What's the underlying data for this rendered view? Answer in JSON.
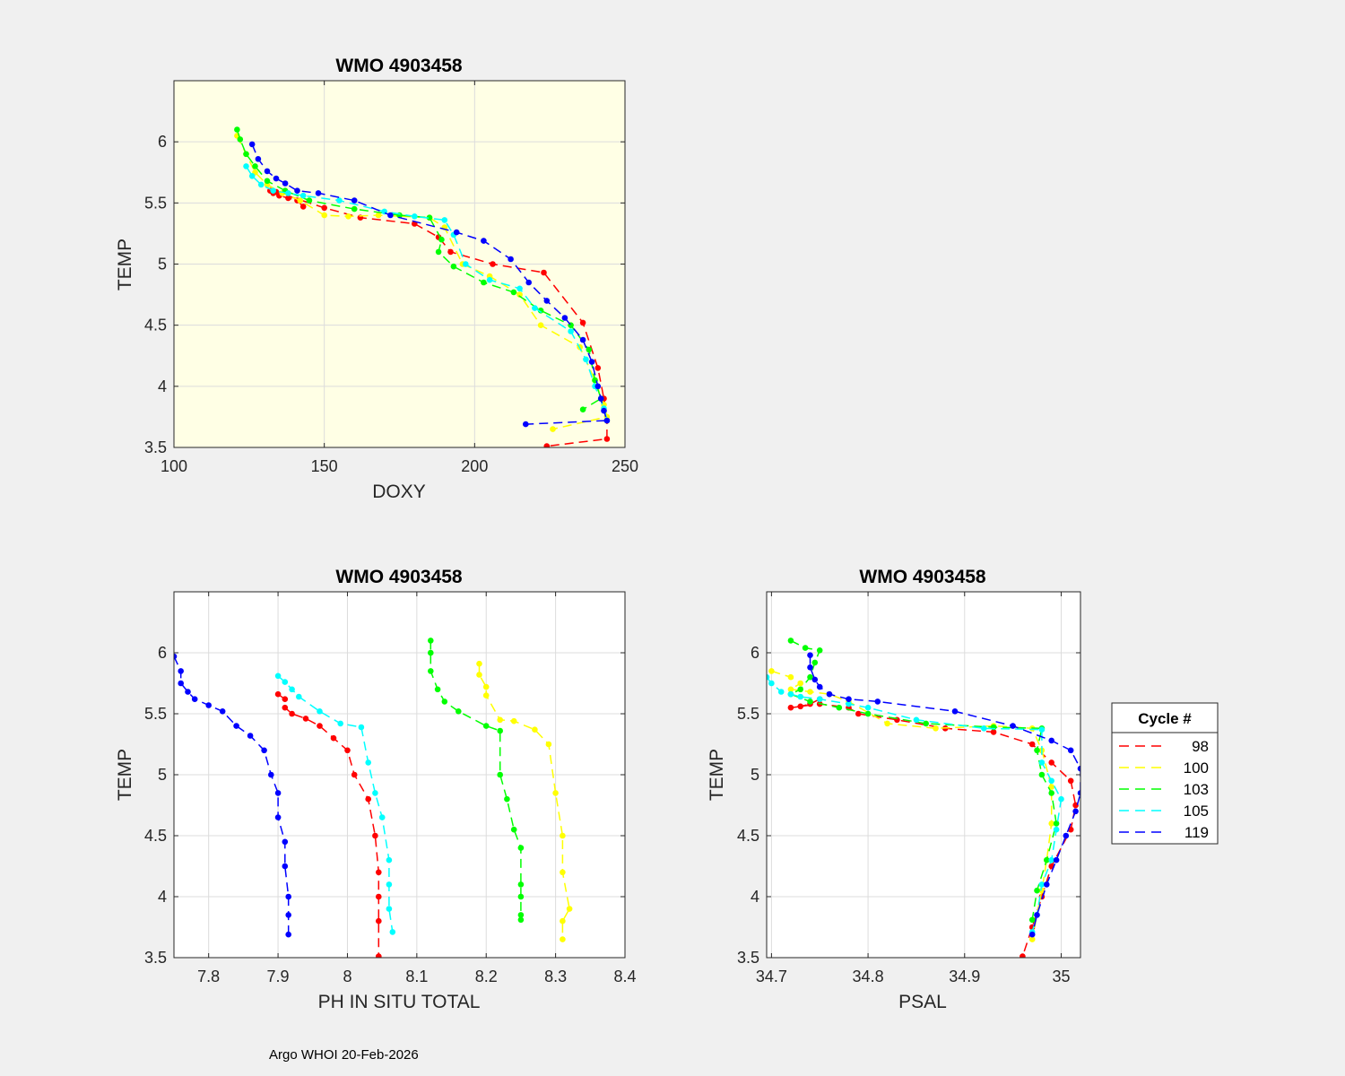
{
  "footer": "Argo WHOI 20-Feb-2026",
  "legend": {
    "title": "Cycle #",
    "entries": [
      "98",
      "100",
      "103",
      "105",
      "119"
    ]
  },
  "series_colors": {
    "98": "#ff0000",
    "100": "#ffff00",
    "103": "#00ff00",
    "105": "#00ffff",
    "119": "#0000ff"
  },
  "chart_data": [
    {
      "id": "doxy",
      "type": "line",
      "title": "WMO 4903458",
      "xlabel": "DOXY",
      "ylabel": "TEMP",
      "xlim": [
        100,
        250
      ],
      "ylim": [
        3.5,
        6.5
      ],
      "xticks": [
        100,
        150,
        200,
        250
      ],
      "yticks": [
        3.5,
        4,
        4.5,
        5,
        5.5,
        6
      ],
      "xtick_labels": [
        "100",
        "150",
        "200",
        "250"
      ],
      "ytick_labels": [
        "3.5",
        "4",
        "4.5",
        "5",
        "5.5",
        "6"
      ],
      "background": "#ffffe5",
      "grid": true,
      "series": [
        {
          "name": "98",
          "x": [
            143,
            141,
            138,
            135,
            133,
            132,
            134,
            150,
            162,
            180,
            188,
            192,
            206,
            223,
            236,
            241,
            243,
            244,
            244,
            224
          ],
          "y": [
            5.47,
            5.52,
            5.54,
            5.56,
            5.58,
            5.6,
            5.59,
            5.46,
            5.38,
            5.33,
            5.22,
            5.1,
            5.0,
            4.93,
            4.52,
            4.15,
            3.9,
            3.72,
            3.57,
            3.51
          ]
        },
        {
          "name": "100",
          "x": [
            121,
            124,
            127,
            131,
            136,
            142,
            150,
            158,
            168,
            185,
            190,
            196,
            205,
            215,
            222,
            235,
            240,
            243,
            244,
            226
          ],
          "y": [
            6.05,
            5.9,
            5.75,
            5.65,
            5.58,
            5.52,
            5.4,
            5.39,
            5.4,
            5.38,
            5.3,
            5.0,
            4.9,
            4.75,
            4.5,
            4.32,
            4.05,
            3.85,
            3.75,
            3.65
          ]
        },
        {
          "name": "103",
          "x": [
            121,
            122,
            124,
            127,
            131,
            137,
            145,
            160,
            175,
            185,
            189,
            188,
            193,
            203,
            213,
            222,
            232,
            238,
            240,
            242,
            236
          ],
          "y": [
            6.1,
            6.02,
            5.9,
            5.8,
            5.68,
            5.6,
            5.52,
            5.45,
            5.4,
            5.38,
            5.2,
            5.1,
            4.98,
            4.85,
            4.77,
            4.62,
            4.5,
            4.3,
            4.05,
            3.9,
            3.81
          ]
        },
        {
          "name": "105",
          "x": [
            124,
            126,
            129,
            133,
            138,
            143,
            155,
            170,
            180,
            190,
            193,
            197,
            205,
            215,
            220,
            232,
            237,
            240,
            243,
            244
          ],
          "y": [
            5.8,
            5.72,
            5.65,
            5.6,
            5.58,
            5.56,
            5.52,
            5.43,
            5.39,
            5.36,
            5.24,
            5.0,
            4.87,
            4.8,
            4.64,
            4.45,
            4.22,
            4.0,
            3.82,
            3.72
          ]
        },
        {
          "name": "119",
          "x": [
            126,
            128,
            131,
            134,
            137,
            141,
            148,
            160,
            172,
            194,
            203,
            212,
            218,
            224,
            230,
            236,
            239,
            241,
            242,
            243,
            244,
            217
          ],
          "y": [
            5.98,
            5.86,
            5.76,
            5.7,
            5.66,
            5.6,
            5.58,
            5.52,
            5.4,
            5.26,
            5.19,
            5.04,
            4.85,
            4.7,
            4.56,
            4.38,
            4.2,
            4.0,
            3.9,
            3.8,
            3.72,
            3.69
          ]
        }
      ]
    },
    {
      "id": "ph",
      "type": "line",
      "title": "WMO 4903458",
      "xlabel": "PH IN SITU TOTAL",
      "ylabel": "TEMP",
      "xlim": [
        7.75,
        8.4
      ],
      "ylim": [
        3.5,
        6.5
      ],
      "xticks": [
        7.8,
        7.9,
        8,
        8.1,
        8.2,
        8.3,
        8.4
      ],
      "yticks": [
        3.5,
        4,
        4.5,
        5,
        5.5,
        6
      ],
      "xtick_labels": [
        "7.8",
        "7.9",
        "8",
        "8.1",
        "8.2",
        "8.3",
        "8.4"
      ],
      "ytick_labels": [
        "3.5",
        "4",
        "4.5",
        "5",
        "5.5",
        "6"
      ],
      "background": "#ffffff",
      "grid": true,
      "series": [
        {
          "name": "98",
          "x": [
            7.9,
            7.91,
            7.91,
            7.92,
            7.94,
            7.96,
            7.98,
            8.0,
            8.01,
            8.03,
            8.04,
            8.045,
            8.045,
            8.045,
            8.045
          ],
          "y": [
            5.66,
            5.62,
            5.55,
            5.5,
            5.46,
            5.4,
            5.3,
            5.2,
            5.0,
            4.8,
            4.5,
            4.2,
            4.0,
            3.8,
            3.51
          ]
        },
        {
          "name": "100",
          "x": [
            8.19,
            8.19,
            8.2,
            8.2,
            8.22,
            8.24,
            8.27,
            8.29,
            8.3,
            8.31,
            8.31,
            8.32,
            8.31,
            8.31
          ],
          "y": [
            5.91,
            5.82,
            5.72,
            5.65,
            5.45,
            5.44,
            5.37,
            5.25,
            4.85,
            4.5,
            4.2,
            3.9,
            3.8,
            3.65
          ]
        },
        {
          "name": "103",
          "x": [
            8.12,
            8.12,
            8.12,
            8.13,
            8.14,
            8.16,
            8.2,
            8.22,
            8.22,
            8.23,
            8.24,
            8.25,
            8.25,
            8.25,
            8.25,
            8.25
          ],
          "y": [
            6.1,
            6.0,
            5.85,
            5.7,
            5.6,
            5.52,
            5.4,
            5.36,
            5.0,
            4.8,
            4.55,
            4.4,
            4.1,
            4.0,
            3.85,
            3.81
          ]
        },
        {
          "name": "105",
          "x": [
            7.9,
            7.91,
            7.92,
            7.93,
            7.96,
            7.99,
            8.02,
            8.03,
            8.04,
            8.05,
            8.06,
            8.06,
            8.06,
            8.065
          ],
          "y": [
            5.81,
            5.76,
            5.7,
            5.64,
            5.52,
            5.42,
            5.39,
            5.1,
            4.85,
            4.65,
            4.3,
            4.1,
            3.9,
            3.71
          ]
        },
        {
          "name": "119",
          "x": [
            7.75,
            7.76,
            7.76,
            7.77,
            7.78,
            7.8,
            7.82,
            7.84,
            7.86,
            7.88,
            7.89,
            7.9,
            7.9,
            7.91,
            7.91,
            7.915,
            7.915,
            7.915
          ],
          "y": [
            5.97,
            5.85,
            5.75,
            5.68,
            5.62,
            5.57,
            5.52,
            5.4,
            5.32,
            5.2,
            5.0,
            4.85,
            4.65,
            4.45,
            4.25,
            4.0,
            3.85,
            3.69
          ]
        }
      ]
    },
    {
      "id": "psal",
      "type": "line",
      "title": "WMO 4903458",
      "xlabel": "PSAL",
      "ylabel": "TEMP",
      "xlim": [
        34.695,
        35.02
      ],
      "ylim": [
        3.5,
        6.5
      ],
      "xticks": [
        34.7,
        34.8,
        34.9,
        35
      ],
      "yticks": [
        3.5,
        4,
        4.5,
        5,
        5.5,
        6
      ],
      "xtick_labels": [
        "34.7",
        "34.8",
        "34.9",
        "35"
      ],
      "ytick_labels": [
        "3.5",
        "4",
        "4.5",
        "5",
        "5.5",
        "6"
      ],
      "background": "#ffffff",
      "grid": true,
      "series": [
        {
          "name": "98",
          "x": [
            34.75,
            34.74,
            34.73,
            34.72,
            34.75,
            34.78,
            34.79,
            34.83,
            34.88,
            34.93,
            34.97,
            34.99,
            35.01,
            35.015,
            35.01,
            34.99,
            34.98,
            34.97,
            34.96
          ],
          "y": [
            5.62,
            5.58,
            5.56,
            5.55,
            5.58,
            5.55,
            5.5,
            5.45,
            5.38,
            5.35,
            5.25,
            5.1,
            4.95,
            4.75,
            4.55,
            4.25,
            4.0,
            3.75,
            3.51
          ]
        },
        {
          "name": "100",
          "x": [
            34.7,
            34.72,
            34.73,
            34.72,
            34.74,
            34.76,
            34.78,
            34.82,
            34.87,
            34.93,
            34.97,
            34.98,
            34.99,
            34.99,
            34.985,
            34.98,
            34.975,
            34.97
          ],
          "y": [
            5.85,
            5.8,
            5.75,
            5.7,
            5.68,
            5.66,
            5.6,
            5.42,
            5.38,
            5.4,
            5.38,
            5.2,
            4.9,
            4.6,
            4.3,
            4.05,
            3.85,
            3.65
          ]
        },
        {
          "name": "103",
          "x": [
            34.72,
            34.735,
            34.75,
            34.745,
            34.74,
            34.73,
            34.72,
            34.74,
            34.77,
            34.8,
            34.86,
            34.93,
            34.98,
            34.975,
            34.98,
            34.99,
            34.995,
            34.985,
            34.975,
            34.97
          ],
          "y": [
            6.1,
            6.04,
            6.02,
            5.92,
            5.8,
            5.7,
            5.66,
            5.6,
            5.55,
            5.5,
            5.42,
            5.39,
            5.38,
            5.2,
            5.0,
            4.85,
            4.6,
            4.3,
            4.05,
            3.81
          ]
        },
        {
          "name": "105",
          "x": [
            34.695,
            34.7,
            34.71,
            34.72,
            34.73,
            34.75,
            34.78,
            34.8,
            34.85,
            34.92,
            34.98,
            34.98,
            34.99,
            35.0,
            34.995,
            34.99,
            34.98,
            34.975,
            34.97
          ],
          "y": [
            5.8,
            5.75,
            5.68,
            5.66,
            5.64,
            5.62,
            5.58,
            5.55,
            5.45,
            5.38,
            5.37,
            5.1,
            4.95,
            4.8,
            4.55,
            4.3,
            4.1,
            3.85,
            3.71
          ]
        },
        {
          "name": "119",
          "x": [
            34.74,
            34.74,
            34.745,
            34.75,
            34.76,
            34.78,
            34.81,
            34.89,
            34.95,
            34.99,
            35.01,
            35.02,
            35.02,
            35.015,
            35.005,
            34.995,
            34.985,
            34.975,
            34.97
          ],
          "y": [
            5.98,
            5.88,
            5.78,
            5.72,
            5.66,
            5.62,
            5.6,
            5.52,
            5.4,
            5.28,
            5.2,
            5.05,
            4.85,
            4.7,
            4.5,
            4.3,
            4.1,
            3.85,
            3.69
          ]
        }
      ]
    }
  ]
}
